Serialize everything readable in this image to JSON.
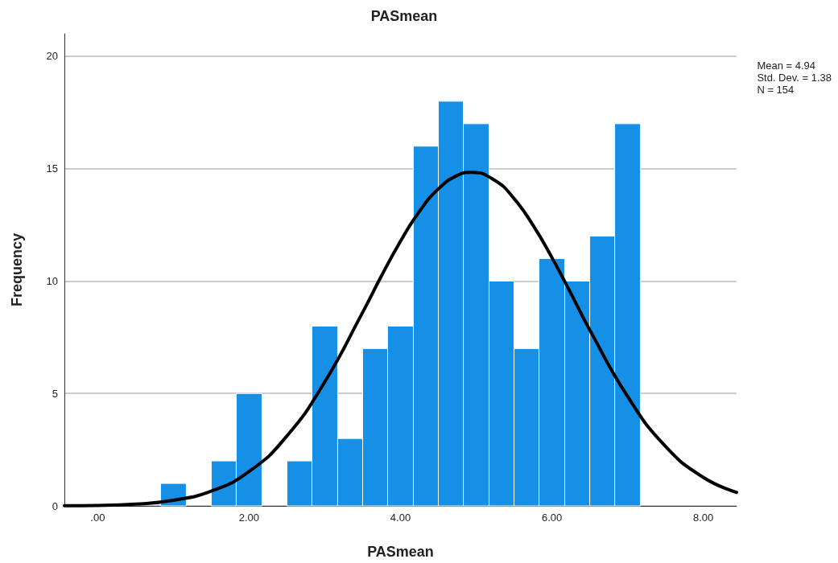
{
  "chart_data": {
    "type": "histogram",
    "title": "PASmean",
    "xlabel": "PASmean",
    "ylabel": "Frequency",
    "bins": [
      0.83,
      1.17,
      1.5,
      1.83,
      2.17,
      2.5,
      2.83,
      3.17,
      3.5,
      3.83,
      4.17,
      4.5,
      4.83,
      5.17,
      5.5,
      5.83,
      6.17,
      6.5,
      6.83,
      7.17
    ],
    "values": [
      1,
      0,
      2,
      5,
      0,
      2,
      8,
      3,
      7,
      8,
      16,
      18,
      17,
      10,
      7,
      11,
      10,
      12,
      17
    ],
    "color": "#1590e6",
    "series": [
      {
        "type": "line",
        "color": "#000000",
        "marker": "none",
        "x": [
          -0.44,
          0,
          0.5,
          1,
          1.5,
          2,
          2.5,
          3,
          3.5,
          3.75,
          4,
          4.25,
          4.5,
          4.75,
          4.94,
          5.25,
          5.5,
          5.75,
          6,
          6.25,
          6.5,
          7,
          7.5,
          8,
          8.44
        ],
        "values": [
          0.01,
          0.02,
          0.08,
          0.25,
          0.66,
          1.53,
          3.11,
          5.52,
          8.61,
          10.24,
          11.77,
          13.1,
          14.1,
          14.7,
          14.84,
          14.47,
          13.67,
          12.49,
          11.05,
          9.46,
          7.83,
          4.87,
          2.65,
          1.27,
          0.6
        ]
      }
    ],
    "xlim": [
      -0.44,
      8.44
    ],
    "xticks": [
      {
        "value": 0,
        "label": ".00"
      },
      {
        "value": 2,
        "label": "2.00"
      },
      {
        "value": 4,
        "label": "4.00"
      },
      {
        "value": 6,
        "label": "6.00"
      },
      {
        "value": 8,
        "label": "8.00"
      }
    ],
    "ylim": [
      0,
      21
    ],
    "yticks": [
      0,
      5,
      10,
      15,
      20
    ],
    "grid": "y",
    "annotations": [
      "Mean = 4.94\nStd. Dev. = 1.38\nN = 154"
    ]
  }
}
